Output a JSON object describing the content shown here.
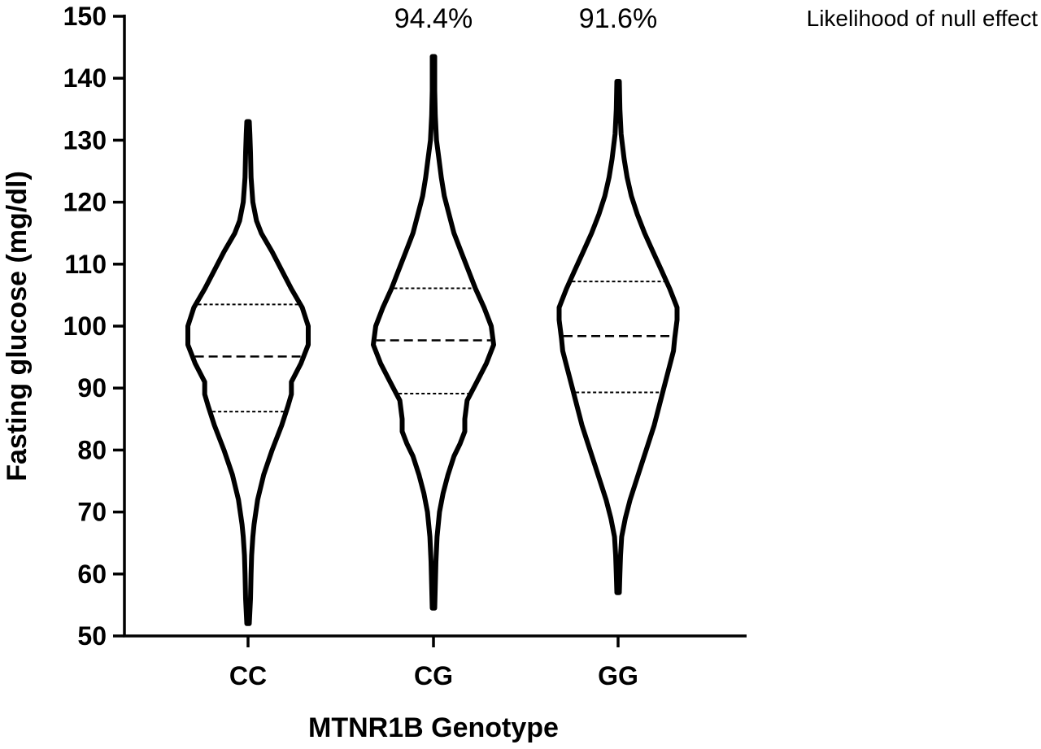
{
  "chart_data": {
    "type": "violin",
    "xlabel": "MTNR1B Genotype",
    "ylabel": "Fasting glucose (mg/dl)",
    "ylim": [
      50,
      150
    ],
    "yticks": [
      50,
      60,
      70,
      80,
      90,
      100,
      110,
      120,
      130,
      140,
      150
    ],
    "grid": false,
    "categories": [
      "CC",
      "CG",
      "GG"
    ],
    "annotation_header": "Likelihood of null effect",
    "annotations": [
      "",
      "94.4%",
      "91.6%"
    ],
    "series": [
      {
        "category": "CC",
        "min": 52,
        "max": 133,
        "q1": 86.2,
        "median": 95.1,
        "q3": 103.5,
        "profile": [
          [
            52,
            0.02
          ],
          [
            56,
            0.04
          ],
          [
            60,
            0.05
          ],
          [
            63,
            0.06
          ],
          [
            66,
            0.08
          ],
          [
            68,
            0.1
          ],
          [
            72,
            0.16
          ],
          [
            76,
            0.26
          ],
          [
            80,
            0.4
          ],
          [
            84,
            0.56
          ],
          [
            87,
            0.66
          ],
          [
            89,
            0.72
          ],
          [
            91,
            0.72
          ],
          [
            94,
            0.88
          ],
          [
            97,
            1.0
          ],
          [
            100,
            1.0
          ],
          [
            103,
            0.9
          ],
          [
            106,
            0.72
          ],
          [
            109,
            0.56
          ],
          [
            112,
            0.4
          ],
          [
            115,
            0.22
          ],
          [
            117,
            0.14
          ],
          [
            120,
            0.08
          ],
          [
            124,
            0.05
          ],
          [
            128,
            0.04
          ],
          [
            131,
            0.03
          ],
          [
            133,
            0.02
          ]
        ]
      },
      {
        "category": "CG",
        "min": 54.5,
        "max": 143.5,
        "q1": 89.1,
        "median": 97.7,
        "q3": 106.1,
        "profile": [
          [
            54.5,
            0.02
          ],
          [
            58,
            0.03
          ],
          [
            62,
            0.04
          ],
          [
            66,
            0.06
          ],
          [
            70,
            0.1
          ],
          [
            73,
            0.16
          ],
          [
            76,
            0.24
          ],
          [
            79,
            0.34
          ],
          [
            81,
            0.44
          ],
          [
            83,
            0.52
          ],
          [
            85,
            0.52
          ],
          [
            88,
            0.56
          ],
          [
            91,
            0.72
          ],
          [
            94,
            0.88
          ],
          [
            97,
            1.0
          ],
          [
            100,
            0.96
          ],
          [
            103,
            0.84
          ],
          [
            106,
            0.7
          ],
          [
            109,
            0.58
          ],
          [
            112,
            0.46
          ],
          [
            115,
            0.34
          ],
          [
            118,
            0.26
          ],
          [
            121,
            0.18
          ],
          [
            124,
            0.13
          ],
          [
            127,
            0.09
          ],
          [
            130,
            0.05
          ],
          [
            134,
            0.03
          ],
          [
            138,
            0.02
          ],
          [
            143.5,
            0.02
          ]
        ]
      },
      {
        "category": "GG",
        "min": 57,
        "max": 139.5,
        "q1": 89.3,
        "median": 98.4,
        "q3": 107.2,
        "profile": [
          [
            57,
            0.02
          ],
          [
            60,
            0.03
          ],
          [
            63,
            0.04
          ],
          [
            66,
            0.06
          ],
          [
            69,
            0.12
          ],
          [
            72,
            0.2
          ],
          [
            75,
            0.3
          ],
          [
            78,
            0.4
          ],
          [
            81,
            0.5
          ],
          [
            84,
            0.6
          ],
          [
            87,
            0.68
          ],
          [
            90,
            0.76
          ],
          [
            93,
            0.84
          ],
          [
            96,
            0.92
          ],
          [
            98,
            0.94
          ],
          [
            101,
            0.98
          ],
          [
            103,
            0.98
          ],
          [
            106,
            0.86
          ],
          [
            109,
            0.72
          ],
          [
            112,
            0.58
          ],
          [
            115,
            0.44
          ],
          [
            118,
            0.32
          ],
          [
            121,
            0.22
          ],
          [
            124,
            0.15
          ],
          [
            127,
            0.1
          ],
          [
            131,
            0.05
          ],
          [
            135,
            0.03
          ],
          [
            139.5,
            0.02
          ]
        ]
      }
    ]
  }
}
